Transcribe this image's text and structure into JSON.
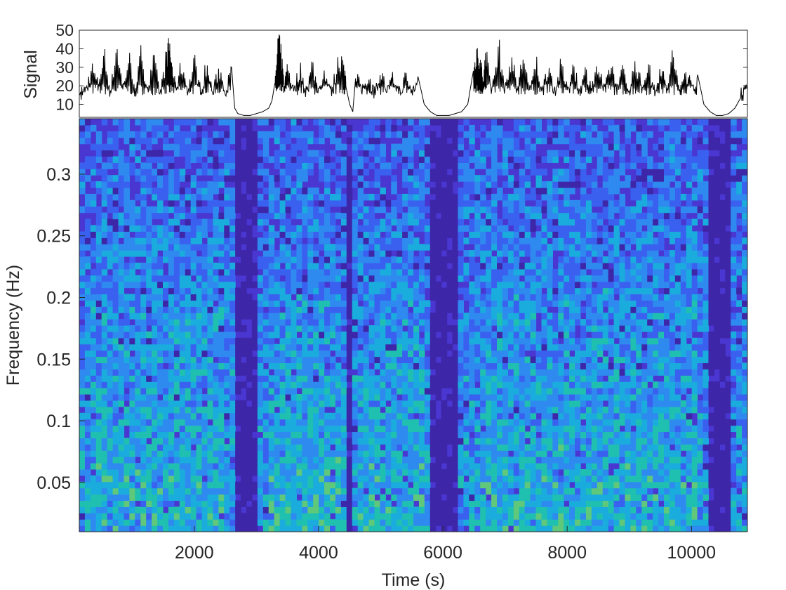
{
  "chart_data": [
    {
      "type": "line",
      "ylabel": "Signal",
      "xlabel": "",
      "xlim": [
        150,
        10900
      ],
      "ylim": [
        3,
        50
      ],
      "y_ticks": [
        "10",
        "20",
        "30",
        "40",
        "50"
      ],
      "y_tick_values": [
        10,
        20,
        30,
        40,
        50
      ],
      "line_color": "#000000",
      "x_tick_labels_shown": false,
      "series": [
        {
          "x": [
            150,
            250,
            350,
            450,
            550,
            650,
            750,
            850,
            950,
            1050,
            1150,
            1250,
            1350,
            1450,
            1550,
            1600,
            1650,
            1700,
            1800,
            1900,
            2000,
            2100,
            2200,
            2300,
            2400,
            2500,
            2600,
            2650,
            2700,
            2800,
            2900,
            3000,
            3100,
            3200,
            3250,
            3300,
            3350,
            3400,
            3450,
            3500,
            3600,
            3700,
            3800,
            3900,
            4000,
            4100,
            4200,
            4300,
            4400,
            4450,
            4500,
            4550,
            4600,
            4700,
            4800,
            4900,
            5000,
            5100,
            5200,
            5300,
            5400,
            5500,
            5600,
            5700,
            5800,
            5900,
            6000,
            6100,
            6200,
            6300,
            6400,
            6500,
            6550,
            6600,
            6650,
            6700,
            6800,
            6900,
            7000,
            7100,
            7200,
            7300,
            7400,
            7500,
            7600,
            7700,
            7800,
            7900,
            8000,
            8100,
            8200,
            8300,
            8400,
            8500,
            8600,
            8700,
            8800,
            8900,
            9000,
            9100,
            9200,
            9300,
            9400,
            9500,
            9600,
            9700,
            9800,
            9900,
            10000,
            10100,
            10200,
            10300,
            10400,
            10500,
            10600,
            10700,
            10800,
            10900
          ],
          "y": [
            14,
            18,
            32,
            22,
            40,
            16,
            45,
            20,
            38,
            15,
            42,
            18,
            36,
            17,
            38,
            44,
            30,
            20,
            34,
            18,
            36,
            19,
            33,
            17,
            32,
            18,
            30,
            8,
            5,
            4,
            4,
            5,
            6,
            8,
            12,
            22,
            48,
            38,
            20,
            35,
            18,
            32,
            17,
            34,
            18,
            30,
            16,
            33,
            40,
            18,
            10,
            6,
            26,
            20,
            28,
            16,
            30,
            18,
            26,
            16,
            27,
            17,
            25,
            10,
            6,
            4,
            4,
            4,
            5,
            6,
            10,
            30,
            42,
            36,
            26,
            40,
            20,
            44,
            18,
            38,
            20,
            40,
            16,
            36,
            18,
            34,
            17,
            33,
            19,
            35,
            17,
            30,
            22,
            32,
            18,
            34,
            21,
            30,
            18,
            36,
            20,
            34,
            17,
            33,
            19,
            40,
            18,
            30,
            22,
            26,
            10,
            6,
            4,
            4,
            5,
            8,
            14,
            19
          ]
        }
      ]
    },
    {
      "type": "heatmap",
      "xlabel": "Time (s)",
      "ylabel": "Frequency (Hz)",
      "xlim": [
        150,
        10900
      ],
      "ylim": [
        0.01,
        0.345
      ],
      "x_ticks": [
        "2000",
        "4000",
        "6000",
        "8000",
        "10000"
      ],
      "x_tick_values": [
        2000,
        4000,
        6000,
        8000,
        10000
      ],
      "y_ticks": [
        "0.05",
        "0.1",
        "0.15",
        "0.2",
        "0.25",
        "0.3"
      ],
      "y_tick_values": [
        0.05,
        0.1,
        0.15,
        0.2,
        0.25,
        0.3
      ],
      "colormap": [
        "#3e26a8",
        "#4a36d0",
        "#3a60f0",
        "#2f8af0",
        "#1aacdc",
        "#20c0b0",
        "#5fc87a",
        "#a8c040"
      ],
      "low_power_bands_time_s": [
        [
          2650,
          3050
        ],
        [
          4450,
          4520
        ],
        [
          5800,
          6200
        ],
        [
          10300,
          10650
        ]
      ],
      "high_power_regions_time_s": [
        [
          300,
          2500
        ],
        [
          3200,
          4400
        ],
        [
          4600,
          5700
        ],
        [
          6600,
          10100
        ]
      ]
    }
  ]
}
